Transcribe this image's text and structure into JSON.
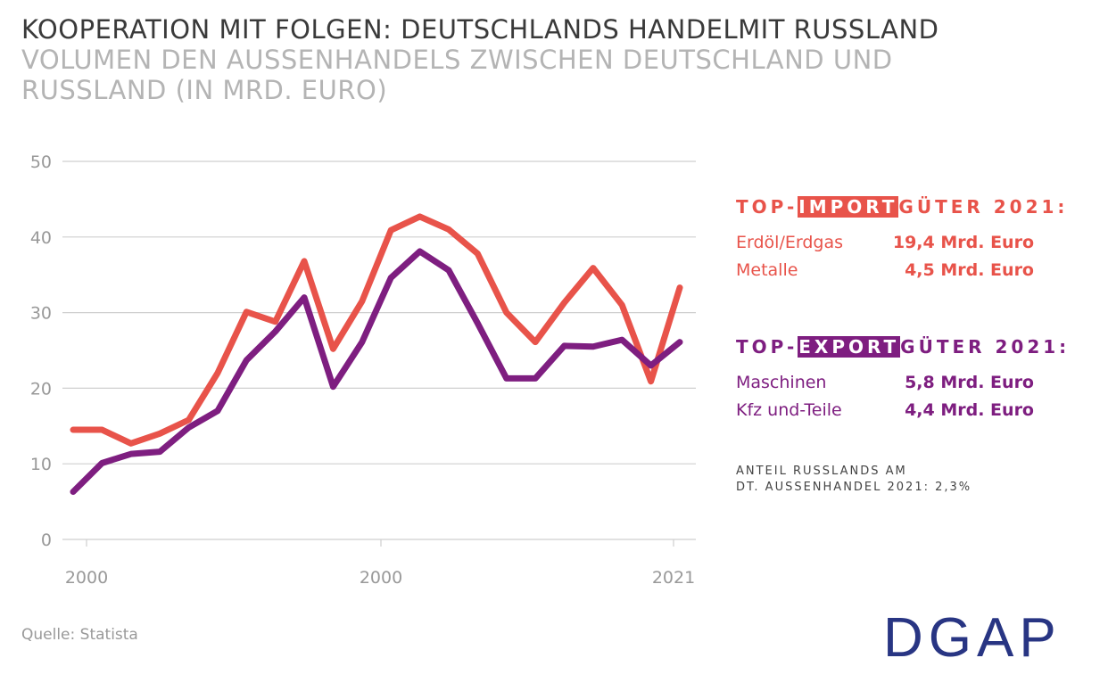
{
  "header": {
    "title": "KOOPERATION MIT FOLGEN: DEUTSCHLANDS HANDELMIT RUSSLAND",
    "subtitle": "VOLUMEN DEN AUSSENHANDELS ZWISCHEN DEUTSCHLAND UND RUSSLAND (IN MRD. EURO)"
  },
  "chart_data": {
    "type": "line",
    "x": [
      2000,
      2001,
      2002,
      2003,
      2004,
      2005,
      2006,
      2007,
      2008,
      2009,
      2010,
      2011,
      2012,
      2013,
      2014,
      2015,
      2016,
      2017,
      2018,
      2019,
      2020,
      2021
    ],
    "xtick_labels": [
      "2000",
      "2000",
      "2021"
    ],
    "ytick_labels": [
      "0",
      "10",
      "20",
      "30",
      "40",
      "50"
    ],
    "yticks": [
      0,
      10,
      20,
      30,
      40,
      50
    ],
    "ylim": [
      0,
      50
    ],
    "grid": "horizontal",
    "series": [
      {
        "color": "#e8534a",
        "values": [
          14.5,
          14.5,
          12.7,
          14,
          15.8,
          22,
          30.1,
          28.8,
          36.8,
          25.2,
          31.5,
          40.9,
          42.7,
          41,
          37.8,
          30,
          26.1,
          31.3,
          35.9,
          31,
          20.9,
          33.3
        ]
      },
      {
        "color": "#7e1e80",
        "values": [
          6.3,
          10.1,
          11.3,
          11.6,
          14.8,
          17,
          23.7,
          27.5,
          32,
          20.2,
          26.1,
          34.6,
          38.1,
          35.6,
          28.6,
          21.3,
          21.3,
          25.6,
          25.5,
          26.4,
          23,
          26.1
        ]
      }
    ]
  },
  "imports": {
    "head_pre": "TOP-",
    "head_hl": "IMPORT",
    "head_post": "GÜTER 2021:",
    "color": "#e8534a",
    "items": [
      {
        "label": "Erdöl/Erdgas",
        "value": "19,4 Mrd. Euro"
      },
      {
        "label": "Metalle",
        "value": "4,5 Mrd. Euro"
      }
    ]
  },
  "exports": {
    "head_pre": "TOP-",
    "head_hl": "EXPORT",
    "head_post": "GÜTER 2021:",
    "color": "#7e1e80",
    "items": [
      {
        "label": "Maschinen",
        "value": "5,8 Mrd. Euro"
      },
      {
        "label": "Kfz und-Teile",
        "value": "4,4 Mrd. Euro"
      }
    ]
  },
  "note": {
    "line1": "ANTEIL RUSSLANDS AM",
    "line2": "DT. AUSSENHANDEL 2021: 2,3%"
  },
  "source": "Quelle: Statista",
  "logo": {
    "text": "DGAP",
    "color": "#283583"
  }
}
